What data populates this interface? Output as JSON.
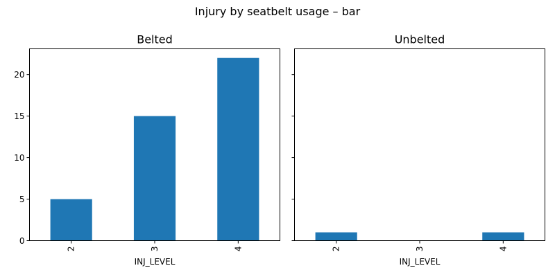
{
  "figure_title": "Injury by seatbelt usage – bar",
  "colors": {
    "bar": "#1f77b4",
    "axis": "#000000",
    "background": "#ffffff"
  },
  "chart_data": [
    {
      "type": "bar",
      "title": "Belted",
      "xlabel": "INJ_LEVEL",
      "ylabel": "",
      "categories": [
        "2",
        "3",
        "4"
      ],
      "values": [
        5,
        15,
        22
      ],
      "ylim": [
        0,
        23.1
      ],
      "yticks": [
        0,
        5,
        10,
        15,
        20
      ],
      "show_ytick_labels": true,
      "grid": false
    },
    {
      "type": "bar",
      "title": "Unbelted",
      "xlabel": "INJ_LEVEL",
      "ylabel": "",
      "categories": [
        "2",
        "3",
        "4"
      ],
      "values": [
        1,
        0,
        1
      ],
      "ylim": [
        0,
        23.1
      ],
      "yticks": [
        0,
        5,
        10,
        15,
        20
      ],
      "show_ytick_labels": false,
      "grid": false
    }
  ]
}
